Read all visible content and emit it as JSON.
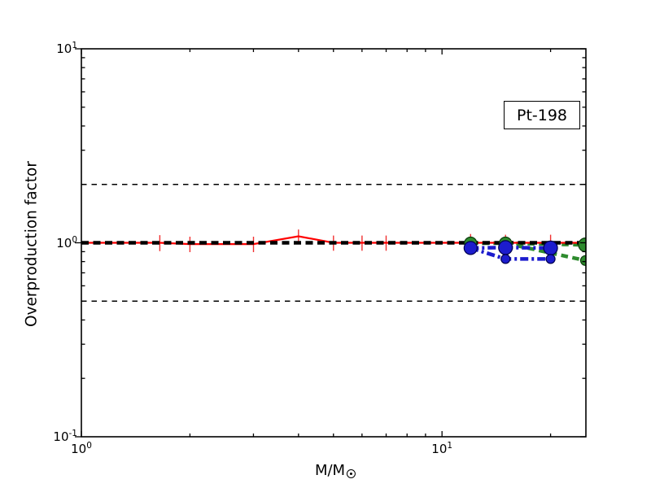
{
  "figure": {
    "title_box": "Pt-198",
    "xlabel_text": "M/M",
    "background": "#ffffff"
  },
  "chart_data": {
    "type": "line",
    "title": "Pt-198",
    "xlabel": "M/M_sun",
    "ylabel": "Overproduction factor",
    "xscale": "log",
    "yscale": "log",
    "xlim": [
      1,
      25.06
    ],
    "ylim": [
      0.1,
      10
    ],
    "grid": false,
    "legend": "none",
    "x_axis": {
      "major_ticks": [
        {
          "value": 1,
          "base": "10",
          "exp": "0"
        },
        {
          "value": 10,
          "base": "10",
          "exp": "1"
        }
      ],
      "minor_ticks": [
        2,
        3,
        4,
        5,
        6,
        7,
        8,
        9,
        20
      ]
    },
    "y_axis": {
      "major_ticks": [
        {
          "value": 10,
          "base": "10",
          "exp": "1"
        },
        {
          "value": 1,
          "base": "10",
          "exp": "0"
        },
        {
          "value": 0.1,
          "base": "10",
          "exp": "-1"
        }
      ],
      "minor_ticks": [
        0.2,
        0.3,
        0.4,
        0.5,
        0.6,
        0.7,
        0.8,
        0.9,
        2,
        3,
        4,
        5,
        6,
        7,
        8,
        9
      ]
    },
    "reference_lines": [
      {
        "y": 2,
        "color": "#000000",
        "linestyle": "dashed",
        "linewidth": 1.5
      },
      {
        "y": 0.5,
        "color": "#000000",
        "linestyle": "dashed",
        "linewidth": 1.5
      },
      {
        "y": 1,
        "color": "#000000",
        "linestyle": "dashed",
        "linewidth": 4.5
      }
    ],
    "series": [
      {
        "name": "green-upper-models",
        "type": "line",
        "color": "#2e8b2e",
        "edge_color": "#0a3a0a",
        "linestyle": "dashed",
        "linewidth": 4.5,
        "points": [
          {
            "x": 12,
            "y": 0.995,
            "marker": true,
            "r": 7.5
          },
          {
            "x": 15,
            "y": 0.995,
            "marker": true,
            "r": 7.5
          },
          {
            "x": 25,
            "y": 0.975,
            "marker": true,
            "r": 8.5
          }
        ]
      },
      {
        "name": "red-errorbar-models",
        "type": "errorbar",
        "color": "#ff0000",
        "errorbar_color": "#f03030",
        "linestyle": "solid",
        "linewidth": 2.2,
        "x": [
          1,
          1.65,
          2,
          3,
          4,
          5,
          6,
          7,
          12,
          15,
          20,
          25
        ],
        "y": [
          1.0,
          1.0,
          0.985,
          0.985,
          1.08,
          1.0,
          1.0,
          1.0,
          1.0,
          1.0,
          1.0,
          1.0
        ],
        "yerr": [
          0,
          0.095,
          0.09,
          0.09,
          0.09,
          0.09,
          0.09,
          0.09,
          0.11,
          0.1,
          0.1,
          0
        ]
      },
      {
        "name": "green-lower-models",
        "type": "line",
        "color": "#2e8b2e",
        "edge_color": "#0a3a0a",
        "linestyle": "dashed",
        "linewidth": 4.5,
        "points": [
          {
            "x": 15,
            "y": 0.995,
            "marker": false
          },
          {
            "x": 25,
            "y": 0.81,
            "marker": true,
            "r": 6
          }
        ]
      },
      {
        "name": "blue-upper-models",
        "type": "line",
        "color": "#1c1ccd",
        "edge_color": "#00004d",
        "linestyle": "dashdot",
        "linewidth": 4.5,
        "points": [
          {
            "x": 12,
            "y": 0.94,
            "marker": true,
            "r": 8
          },
          {
            "x": 15,
            "y": 0.945,
            "marker": true,
            "r": 8.5
          },
          {
            "x": 20,
            "y": 0.94,
            "marker": true,
            "r": 8.5
          }
        ]
      },
      {
        "name": "blue-lower-models",
        "type": "line",
        "color": "#1c1ccd",
        "edge_color": "#00004d",
        "linestyle": "dashdot",
        "linewidth": 4.5,
        "points": [
          {
            "x": 12,
            "y": 0.94,
            "marker": false
          },
          {
            "x": 15,
            "y": 0.825,
            "marker": true,
            "r": 5.5
          },
          {
            "x": 20,
            "y": 0.825,
            "marker": true,
            "r": 5.5
          }
        ]
      }
    ]
  }
}
